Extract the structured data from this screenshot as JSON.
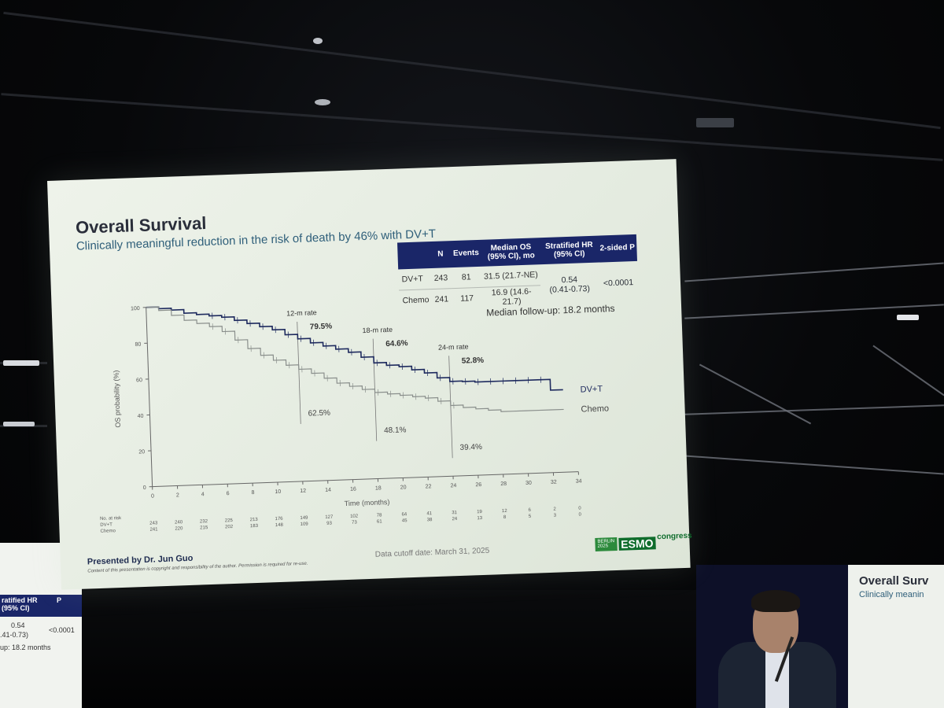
{
  "slide": {
    "title": "Overall Survival",
    "subtitle": "Clinically meaningful reduction in the risk of death by 46% with DV+T",
    "presenter": "Presented by Dr. Jun Guo",
    "copyright": "Content of this presentation is copyright and responsibility of the author. Permission is required for re-use.",
    "cutoff": "Data cutoff date: March 31, 2025",
    "followup": "Median follow-up: 18.2 months",
    "logo": {
      "city": [
        "BERLIN",
        "2025"
      ],
      "mark": "ESMO",
      "word": "congress"
    }
  },
  "table": {
    "headers": [
      "",
      "N",
      "Events",
      "Median OS (95% CI), mo",
      "Stratified HR (95% CI)",
      "2-sided P"
    ],
    "rows": [
      {
        "arm": "DV+T",
        "n": "243",
        "events": "81",
        "median": "31.5 (21.7-NE)"
      },
      {
        "arm": "Chemo",
        "n": "241",
        "events": "117",
        "median": "16.9 (14.6-21.7)"
      }
    ],
    "hr": [
      "0.54",
      "(0.41-0.73)"
    ],
    "p": "<0.0001"
  },
  "chart_data": {
    "type": "line",
    "title": "Overall Survival",
    "xlabel": "Time (months)",
    "ylabel": "OS probability (%)",
    "xlim": [
      0,
      34
    ],
    "ylim": [
      0,
      100
    ],
    "xticks": [
      0,
      2,
      4,
      6,
      8,
      10,
      12,
      14,
      16,
      18,
      20,
      22,
      24,
      26,
      28,
      30,
      32,
      34
    ],
    "yticks": [
      0,
      20,
      40,
      60,
      80,
      100
    ],
    "series": [
      {
        "name": "DV+T",
        "color": "#1e2a5e",
        "x": [
          0,
          1,
          2,
          3,
          4,
          5,
          6,
          7,
          8,
          9,
          10,
          11,
          12,
          13,
          14,
          15,
          16,
          17,
          18,
          19,
          20,
          21,
          22,
          23,
          24,
          25,
          26,
          27,
          28,
          29,
          30,
          31,
          32,
          33
        ],
        "y": [
          100,
          99,
          98,
          96,
          95,
          94,
          93,
          91,
          89,
          87,
          85,
          82,
          79.5,
          77,
          75,
          73,
          71,
          68,
          64.6,
          63,
          62,
          60,
          58,
          55,
          52.8,
          52.5,
          52,
          52,
          52,
          52,
          52,
          52,
          46,
          46
        ]
      },
      {
        "name": "Chemo",
        "color": "#8a8f8c",
        "x": [
          0,
          1,
          2,
          3,
          4,
          5,
          6,
          7,
          8,
          9,
          10,
          11,
          12,
          13,
          14,
          15,
          16,
          17,
          18,
          19,
          20,
          21,
          22,
          23,
          24,
          25,
          26,
          27,
          28,
          29,
          30,
          31,
          32,
          33
        ],
        "y": [
          100,
          98,
          95,
          92,
          90,
          88,
          85,
          80,
          75,
          71,
          68,
          65,
          62.5,
          60,
          57,
          54,
          52,
          50,
          48.1,
          47,
          46,
          45,
          44,
          42,
          39.4,
          38,
          37,
          36,
          35,
          35,
          35,
          35,
          35,
          35
        ]
      }
    ],
    "rate_labels": [
      "12-m rate",
      "18-m rate",
      "24-m rate"
    ],
    "rate_months": [
      12,
      18,
      24
    ],
    "rates": [
      {
        "dvt": "79.5%",
        "chemo": "62.5%"
      },
      {
        "dvt": "64.6%",
        "chemo": "48.1%"
      },
      {
        "dvt": "52.8%",
        "chemo": "39.4%"
      }
    ],
    "legend": [
      "DV+T",
      "Chemo"
    ],
    "at_risk": {
      "title": "No. at risk",
      "arms": [
        "DV+T",
        "Chemo"
      ],
      "dvt": [
        "243",
        "240",
        "232",
        "225",
        "213",
        "176",
        "149",
        "127",
        "102",
        "78",
        "64",
        "41",
        "31",
        "19",
        "12",
        "6",
        "2",
        "0"
      ],
      "chemo": [
        "241",
        "220",
        "215",
        "202",
        "183",
        "148",
        "109",
        "93",
        "73",
        "61",
        "45",
        "38",
        "24",
        "13",
        "8",
        "5",
        "3",
        "0"
      ]
    }
  },
  "side_left": {
    "hdr1": "ratified HR",
    "hdr1b": "(95% CI)",
    "hdr2": "P",
    "v1": "0.54",
    "v2": ".41-0.73)",
    "v3": "<0.0001",
    "v4": "up: 18.2 months"
  },
  "side_right": {
    "title": "Overall Surv",
    "subtitle": "Clinically meanin"
  }
}
